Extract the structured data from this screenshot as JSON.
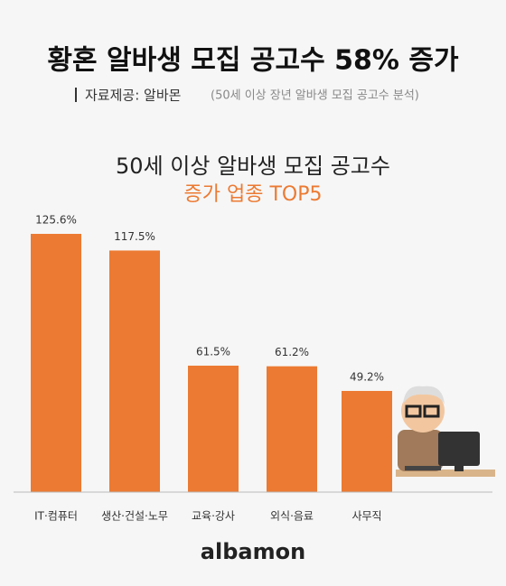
{
  "header": {
    "title": "황혼 알바생 모집 공고수 58% 증가",
    "source": "자료제공: 알바몬",
    "source_note": "(50세 이상 장년 알바생 모집 공고수 분석)"
  },
  "chart_data": {
    "type": "bar",
    "title": "50세 이상 알바생 모집 공고수",
    "subtitle": "증가 업종 TOP5",
    "categories": [
      "IT·컴퓨터",
      "생산·건설·노무",
      "교육·강사",
      "외식·음료",
      "사무직"
    ],
    "values": [
      125.6,
      117.5,
      61.5,
      61.2,
      49.2
    ],
    "value_labels": [
      "125.6%",
      "117.5%",
      "61.5%",
      "61.2%",
      "49.2%"
    ],
    "color": "#ec7a32"
  },
  "footer": {
    "logo": "albamon"
  }
}
